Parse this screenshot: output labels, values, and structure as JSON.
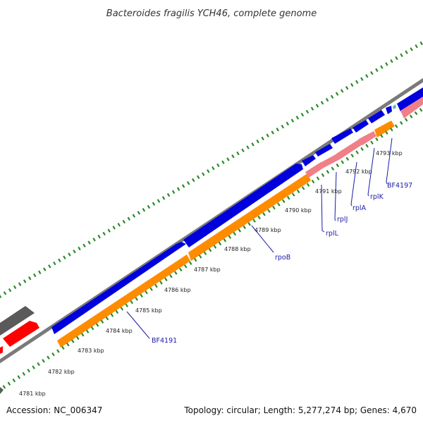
{
  "title": "Bacteroides fragilis YCH46, complete genome",
  "footer": {
    "accession": "Accession: NC_006347",
    "topology": "Topology: circular; Length: 5,277,274 bp; Genes: 4,670"
  },
  "colors": {
    "forward_cds": "#0000dd",
    "reverse_cds": "#ff8c00",
    "forward_other": "#ff0000",
    "reverse_rna": "#f07f88",
    "other_gene": "#5a5a5a",
    "backbone": "#7a7a7a",
    "tick": "#2a8a2a",
    "label": "#1a1aa8"
  },
  "tick_labels": [
    "4781 kbp",
    "4782 kbp",
    "4783 kbp",
    "4784 kbp",
    "4785 kbp",
    "4786 kbp",
    "4787 kbp",
    "4788 kbp",
    "4789 kbp",
    "4790 kbp",
    "4791 kbp",
    "4792 kbp",
    "4793 kbp"
  ],
  "gene_labels": [
    "BF4191",
    "rpoB",
    "rplL",
    "rplJ",
    "rplA",
    "rplK",
    "BF4197"
  ]
}
